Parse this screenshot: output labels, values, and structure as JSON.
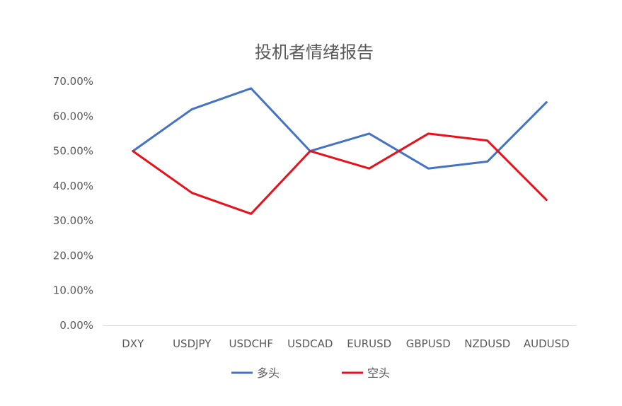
{
  "chart_data": {
    "type": "line",
    "title": "投机者情绪报告",
    "categories": [
      "DXY",
      "USDJPY",
      "USDCHF",
      "USDCAD",
      "EURUSD",
      "GBPUSD",
      "NZDUSD",
      "AUDUSD"
    ],
    "series": [
      {
        "name": "多头",
        "color": "#4472C4",
        "values": [
          0.5,
          0.62,
          0.68,
          0.5,
          0.55,
          0.45,
          0.47,
          0.64
        ]
      },
      {
        "name": "空头",
        "color": "#E8101A",
        "values": [
          0.5,
          0.38,
          0.32,
          0.5,
          0.45,
          0.55,
          0.53,
          0.36
        ]
      }
    ],
    "yticks": [
      "0.00%",
      "10.00%",
      "20.00%",
      "30.00%",
      "40.00%",
      "50.00%",
      "60.00%",
      "70.00%"
    ],
    "ylim": [
      0,
      0.7
    ],
    "grid": false,
    "legend": "bottom"
  }
}
